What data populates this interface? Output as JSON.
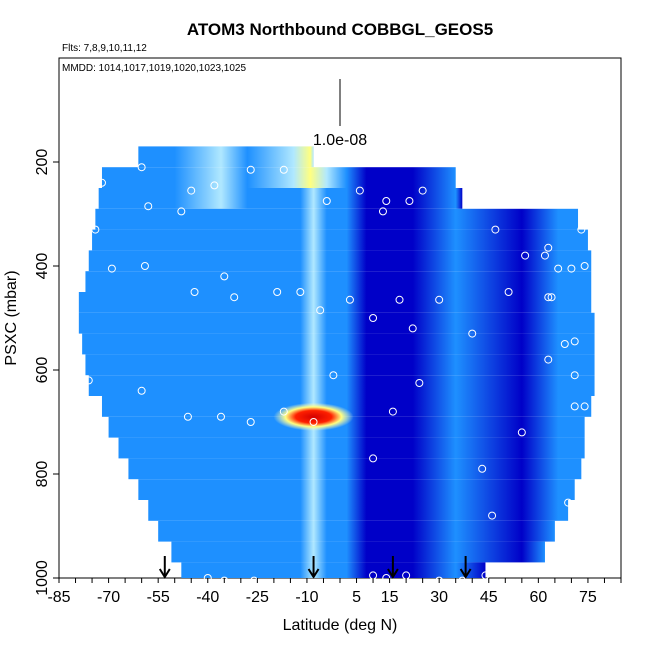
{
  "chart_data": {
    "type": "heatmap",
    "title": "ATOM3 Northbound COBBGL_GEOS5",
    "subtitle_flights": "Flts: 7,8,9,10,11,12",
    "subtitle_dates": "MMDD: 1014,1017,1019,1020,1023,1025",
    "scale_label": "1.0e-08",
    "xlabel": "Latitude (deg N)",
    "ylabel": "PSXC (mbar)",
    "xlim": [
      -85,
      85
    ],
    "ylim": [
      1000,
      0
    ],
    "x_ticks": [
      "-85",
      "-70",
      "-55",
      "-40",
      "-25",
      "-10",
      "5",
      "15",
      "30",
      "45",
      "60",
      "75"
    ],
    "x_tick_values": [
      -85,
      -70,
      -55,
      -40,
      -25,
      -10,
      5,
      15,
      30,
      45,
      60,
      75
    ],
    "y_ticks": [
      "200",
      "400",
      "600",
      "800",
      "1000"
    ],
    "y_tick_values": [
      200,
      400,
      600,
      800,
      1000
    ],
    "colors": {
      "low": "#0000c8",
      "mid": "#1e90ff",
      "light": "#b0e8ff",
      "high_yellow": "#ffff80",
      "high_red": "#d40000"
    },
    "pressure_rows": [
      {
        "p_top": 170,
        "p_bot": 210,
        "lat_min": -61,
        "lat_max": -8
      },
      {
        "p_top": 210,
        "p_bot": 250,
        "lat_min": -72,
        "lat_max": 35
      },
      {
        "p_top": 250,
        "p_bot": 290,
        "lat_min": -73,
        "lat_max": 37
      },
      {
        "p_top": 290,
        "p_bot": 330,
        "lat_min": -74,
        "lat_max": 72
      },
      {
        "p_top": 330,
        "p_bot": 370,
        "lat_min": -75,
        "lat_max": 75
      },
      {
        "p_top": 370,
        "p_bot": 410,
        "lat_min": -76,
        "lat_max": 76
      },
      {
        "p_top": 410,
        "p_bot": 450,
        "lat_min": -77,
        "lat_max": 76
      },
      {
        "p_top": 450,
        "p_bot": 490,
        "lat_min": -79,
        "lat_max": 76
      },
      {
        "p_top": 490,
        "p_bot": 530,
        "lat_min": -79,
        "lat_max": 77
      },
      {
        "p_top": 530,
        "p_bot": 570,
        "lat_min": -78,
        "lat_max": 77
      },
      {
        "p_top": 570,
        "p_bot": 610,
        "lat_min": -77,
        "lat_max": 77
      },
      {
        "p_top": 610,
        "p_bot": 650,
        "lat_min": -76,
        "lat_max": 77
      },
      {
        "p_top": 650,
        "p_bot": 690,
        "lat_min": -72,
        "lat_max": 76
      },
      {
        "p_top": 690,
        "p_bot": 730,
        "lat_min": -70,
        "lat_max": 74
      },
      {
        "p_top": 730,
        "p_bot": 770,
        "lat_min": -67,
        "lat_max": 74
      },
      {
        "p_top": 770,
        "p_bot": 810,
        "lat_min": -64,
        "lat_max": 73
      },
      {
        "p_top": 810,
        "p_bot": 850,
        "lat_min": -61,
        "lat_max": 71
      },
      {
        "p_top": 850,
        "p_bot": 890,
        "lat_min": -58,
        "lat_max": 69
      },
      {
        "p_top": 890,
        "p_bot": 930,
        "lat_min": -55,
        "lat_max": 65
      },
      {
        "p_top": 930,
        "p_bot": 970,
        "lat_min": -51,
        "lat_max": 62
      },
      {
        "p_top": 970,
        "p_bot": 1010,
        "lat_min": -48,
        "lat_max": 44
      }
    ],
    "hotspot": {
      "lat": -8,
      "p": 690,
      "note": "maximum"
    },
    "observation_points": [
      {
        "lat": -60,
        "p": 210
      },
      {
        "lat": -72,
        "p": 240
      },
      {
        "lat": -58,
        "p": 285
      },
      {
        "lat": -48,
        "p": 295
      },
      {
        "lat": -45,
        "p": 255
      },
      {
        "lat": -38,
        "p": 245
      },
      {
        "lat": -27,
        "p": 215
      },
      {
        "lat": -17,
        "p": 215
      },
      {
        "lat": -4,
        "p": 275
      },
      {
        "lat": 6,
        "p": 255
      },
      {
        "lat": 14,
        "p": 275
      },
      {
        "lat": 21,
        "p": 275
      },
      {
        "lat": 25,
        "p": 255
      },
      {
        "lat": 13,
        "p": 295
      },
      {
        "lat": 37,
        "p": 240
      },
      {
        "lat": 47,
        "p": 330
      },
      {
        "lat": -74,
        "p": 330
      },
      {
        "lat": -69,
        "p": 405
      },
      {
        "lat": -59,
        "p": 400
      },
      {
        "lat": -35,
        "p": 420
      },
      {
        "lat": -44,
        "p": 450
      },
      {
        "lat": -32,
        "p": 460
      },
      {
        "lat": -19,
        "p": 450
      },
      {
        "lat": -12,
        "p": 450
      },
      {
        "lat": 3,
        "p": 465
      },
      {
        "lat": 10,
        "p": 500
      },
      {
        "lat": 18,
        "p": 465
      },
      {
        "lat": -6,
        "p": 485
      },
      {
        "lat": 30,
        "p": 465
      },
      {
        "lat": 40,
        "p": 530
      },
      {
        "lat": 51,
        "p": 450
      },
      {
        "lat": 56,
        "p": 380
      },
      {
        "lat": 62,
        "p": 380
      },
      {
        "lat": 63,
        "p": 365
      },
      {
        "lat": 66,
        "p": 405
      },
      {
        "lat": 70,
        "p": 405
      },
      {
        "lat": 73,
        "p": 330
      },
      {
        "lat": 74,
        "p": 400
      },
      {
        "lat": 63,
        "p": 460
      },
      {
        "lat": 64,
        "p": 460
      },
      {
        "lat": 68,
        "p": 550
      },
      {
        "lat": 71,
        "p": 545
      },
      {
        "lat": 63,
        "p": 580
      },
      {
        "lat": 71,
        "p": 610
      },
      {
        "lat": 22,
        "p": 520
      },
      {
        "lat": -2,
        "p": 610
      },
      {
        "lat": 24,
        "p": 625
      },
      {
        "lat": -60,
        "p": 640
      },
      {
        "lat": -76,
        "p": 620
      },
      {
        "lat": -46,
        "p": 690
      },
      {
        "lat": -36,
        "p": 690
      },
      {
        "lat": -17,
        "p": 680
      },
      {
        "lat": -27,
        "p": 700
      },
      {
        "lat": -8,
        "p": 700
      },
      {
        "lat": 16,
        "p": 680
      },
      {
        "lat": 10,
        "p": 770
      },
      {
        "lat": 55,
        "p": 720
      },
      {
        "lat": 71,
        "p": 670
      },
      {
        "lat": 74,
        "p": 670
      },
      {
        "lat": 43,
        "p": 790
      },
      {
        "lat": 69,
        "p": 855
      },
      {
        "lat": 46,
        "p": 880
      },
      {
        "lat": -40,
        "p": 1000
      },
      {
        "lat": -35,
        "p": 1005
      },
      {
        "lat": -26,
        "p": 1005
      },
      {
        "lat": 10,
        "p": 995
      },
      {
        "lat": 14,
        "p": 1000
      },
      {
        "lat": 20,
        "p": 995
      },
      {
        "lat": 30,
        "p": 1005
      },
      {
        "lat": 37,
        "p": 1005
      },
      {
        "lat": 44,
        "p": 995
      }
    ],
    "arrow_markers_lat": [
      -53,
      -8,
      16,
      38
    ],
    "grid": false,
    "legend": "none"
  }
}
